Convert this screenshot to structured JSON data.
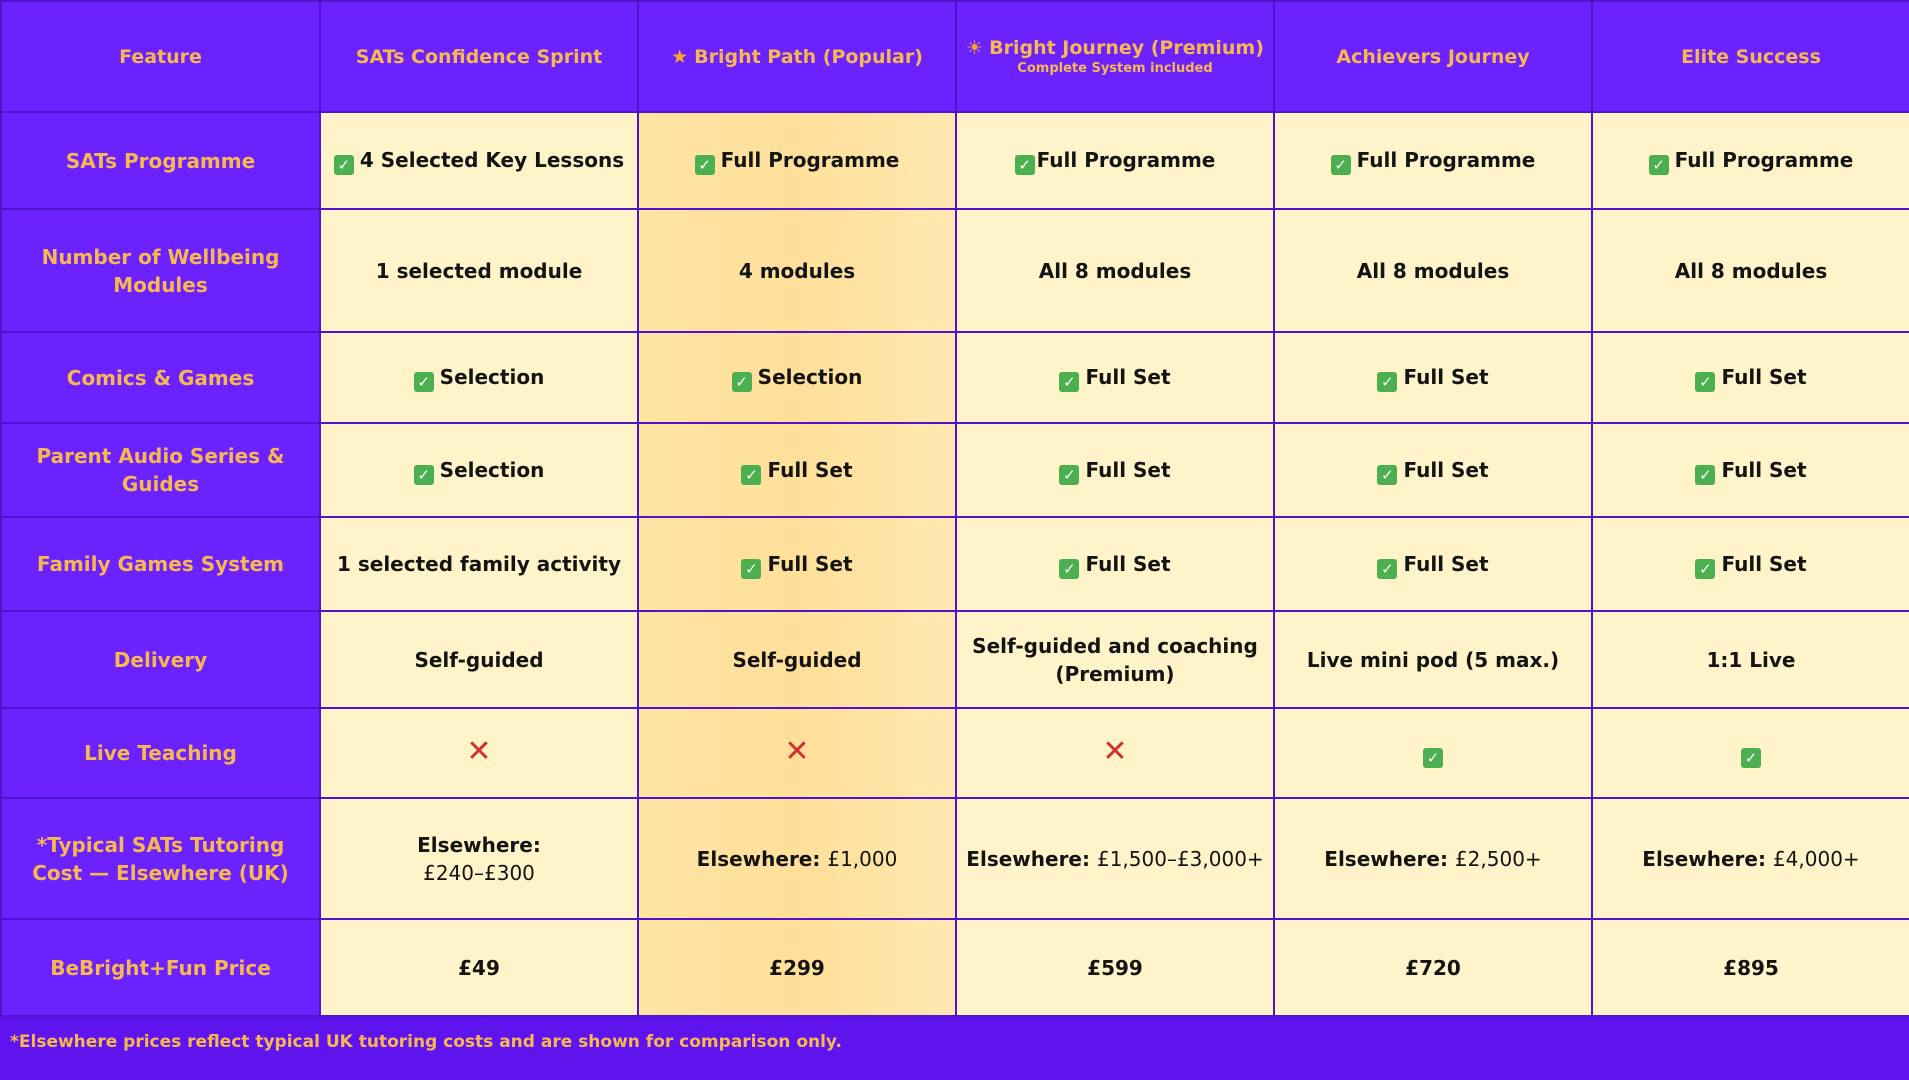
{
  "columns": [
    {
      "label": "Feature"
    },
    {
      "label": "SATs Confidence Sprint"
    },
    {
      "label": "Bright Path (Popular)"
    },
    {
      "label": "Bright Journey (Premium)",
      "sublabel": "Complete System included"
    },
    {
      "label": "Achievers Journey"
    },
    {
      "label": "Elite Success"
    }
  ],
  "rows": [
    {
      "label": "SATs Programme",
      "cells": [
        "4 Selected Key Lessons",
        "Full Programme",
        "Full Programme",
        "Full Programme",
        "Full Programme"
      ]
    },
    {
      "label": "Number of Wellbeing Modules",
      "cells": [
        "1 selected module",
        "4 modules",
        "All 8 modules",
        "All 8 modules",
        "All 8 modules"
      ]
    },
    {
      "label": "Comics & Games",
      "cells": [
        "Selection",
        "Selection",
        "Full Set",
        "Full Set",
        "Full Set"
      ]
    },
    {
      "label": "Parent Audio Series & Guides",
      "cells": [
        "Selection",
        "Full Set",
        "Full Set",
        "Full Set",
        "Full Set"
      ]
    },
    {
      "label": "Family Games System",
      "cells": [
        "1 selected family activity",
        "Full Set",
        "Full Set",
        "Full Set",
        "Full Set"
      ]
    },
    {
      "label": "Delivery",
      "cells": [
        "Self-guided",
        "Self-guided",
        "Self-guided and coaching (Premium)",
        "Live mini pod (5 max.)",
        "1:1 Live"
      ]
    },
    {
      "label": "Live Teaching",
      "cells": [
        "",
        "",
        "",
        "",
        ""
      ]
    },
    {
      "label": "*Typical SATs Tutoring Cost — Elsewhere (UK)",
      "elsewhere_label": "Elsewhere:",
      "cells": [
        "£240–£300",
        "£1,000",
        "£1,500–£3,000+",
        "£2,500+",
        "£4,000+"
      ]
    },
    {
      "label": "BeBright+Fun Price",
      "cells": [
        "£49",
        "£299",
        "£599",
        "£720",
        "£895"
      ]
    }
  ],
  "colors": {
    "header_bg": "#6b22ff",
    "accent_text": "#f7b84e",
    "cell_bg": "#fff3c9",
    "highlight_bg": "#ffe2a0",
    "check": "#4caf50",
    "cross": "#d32f2f"
  },
  "footnote": "*Elsewhere prices reflect typical UK tutoring costs and are shown for comparison only."
}
